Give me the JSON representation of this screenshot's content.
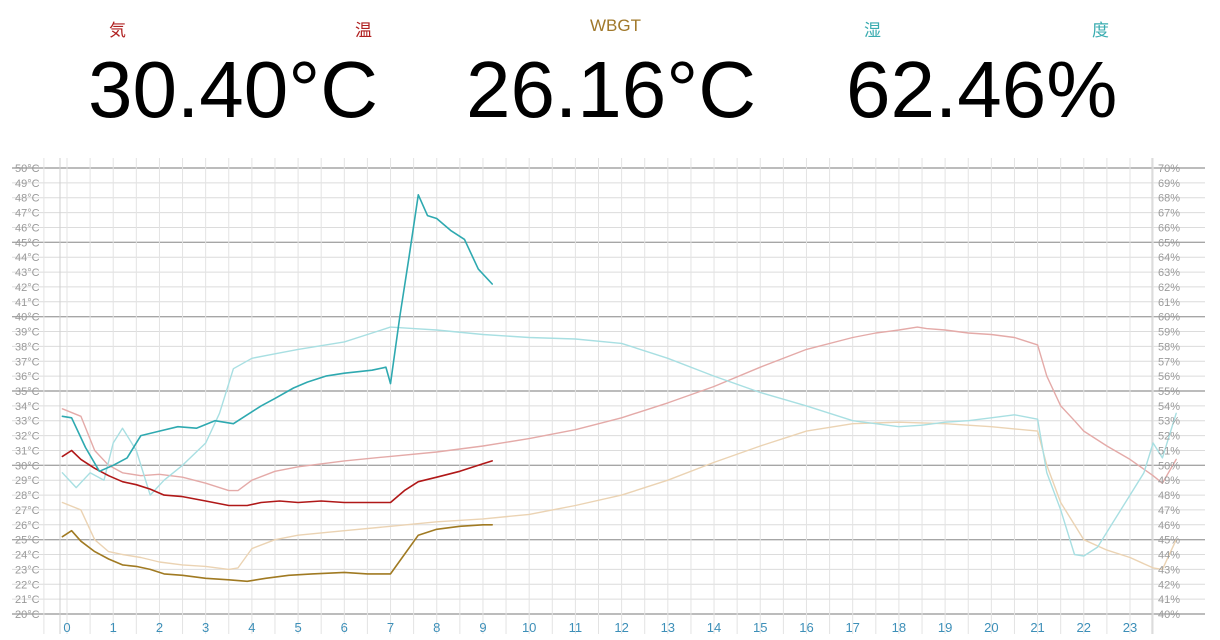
{
  "header": {
    "air_temp_label_1": "気",
    "air_temp_label_2": "温",
    "wbgt_label": "WBGT",
    "humidity_label_1": "湿",
    "humidity_label_2": "度",
    "air_temp_value": "30.40°C",
    "wbgt_value": "26.16°C",
    "humidity_value": "62.46%",
    "colors": {
      "air_temp": "#b02020",
      "wbgt": "#a0782a",
      "humidity": "#3aacb0"
    }
  },
  "chart_data": {
    "type": "line",
    "x_ticks": [
      "0",
      "1",
      "2",
      "3",
      "4",
      "5",
      "6",
      "7",
      "8",
      "9",
      "10",
      "11",
      "12",
      "13",
      "14",
      "15",
      "16",
      "17",
      "18",
      "19",
      "20",
      "21",
      "22",
      "23"
    ],
    "xlim": [
      -0.2,
      24.4
    ],
    "left_axis": {
      "ticks": [
        "20°C",
        "21°C",
        "22°C",
        "23°C",
        "24°C",
        "25°C",
        "26°C",
        "27°C",
        "28°C",
        "29°C",
        "30°C",
        "31°C",
        "32°C",
        "33°C",
        "34°C",
        "35°C",
        "36°C",
        "37°C",
        "38°C",
        "39°C",
        "40°C",
        "41°C",
        "42°C",
        "43°C",
        "44°C",
        "45°C",
        "46°C",
        "47°C",
        "48°C",
        "49°C",
        "50°C"
      ],
      "ylim": [
        20,
        50
      ]
    },
    "right_axis": {
      "ticks": [
        "40%",
        "41%",
        "42%",
        "43%",
        "44%",
        "45%",
        "46%",
        "47%",
        "48%",
        "49%",
        "50%",
        "51%",
        "52%",
        "53%",
        "54%",
        "55%",
        "56%",
        "57%",
        "58%",
        "59%",
        "60%",
        "61%",
        "62%",
        "63%",
        "64%",
        "65%",
        "66%",
        "67%",
        "68%",
        "69%",
        "70%"
      ],
      "ylim": [
        40,
        70
      ]
    },
    "grid": true,
    "series": [
      {
        "key": "air_today",
        "axis": "left",
        "color": "#b01818",
        "width": 1.6,
        "x": [
          -0.1,
          0.1,
          0.3,
          0.6,
          0.9,
          1.2,
          1.5,
          1.8,
          2.1,
          2.5,
          3,
          3.5,
          3.9,
          4.2,
          4.6,
          5,
          5.5,
          6,
          6.5,
          7,
          7.3,
          7.6,
          8,
          8.5,
          9,
          9.2
        ],
        "y": [
          30.6,
          31.0,
          30.4,
          29.8,
          29.3,
          28.9,
          28.7,
          28.4,
          28.0,
          27.9,
          27.6,
          27.3,
          27.3,
          27.5,
          27.6,
          27.5,
          27.6,
          27.5,
          27.5,
          27.5,
          28.3,
          28.9,
          29.2,
          29.6,
          30.1,
          30.3
        ]
      },
      {
        "key": "wbgt_today",
        "axis": "left",
        "color": "#a07a22",
        "width": 1.6,
        "x": [
          -0.1,
          0.1,
          0.3,
          0.6,
          0.9,
          1.2,
          1.5,
          1.8,
          2.1,
          2.5,
          3,
          3.5,
          3.9,
          4.3,
          4.8,
          5.3,
          6,
          6.5,
          7,
          7.3,
          7.6,
          8,
          8.5,
          9,
          9.2
        ],
        "y": [
          25.2,
          25.6,
          24.9,
          24.2,
          23.7,
          23.3,
          23.2,
          23.0,
          22.7,
          22.6,
          22.4,
          22.3,
          22.2,
          22.4,
          22.6,
          22.7,
          22.8,
          22.7,
          22.7,
          24.0,
          25.3,
          25.7,
          25.9,
          26.0,
          26.0
        ]
      },
      {
        "key": "hum_today",
        "axis": "right",
        "color": "#2ea9b0",
        "width": 1.6,
        "x": [
          -0.1,
          0.1,
          0.4,
          0.7,
          1.0,
          1.3,
          1.6,
          2.0,
          2.4,
          2.8,
          3.2,
          3.6,
          3.9,
          4.2,
          4.5,
          4.9,
          5.2,
          5.6,
          6.0,
          6.3,
          6.6,
          6.9,
          7.0,
          7.2,
          7.4,
          7.6,
          7.8,
          8.0,
          8.3,
          8.6,
          8.9,
          9.2
        ],
        "y": [
          53.3,
          53.2,
          51.2,
          49.6,
          50.0,
          50.5,
          52.0,
          52.3,
          52.6,
          52.5,
          53.0,
          52.8,
          53.4,
          54.0,
          54.5,
          55.2,
          55.6,
          56.0,
          56.2,
          56.3,
          56.4,
          56.6,
          55.5,
          60.0,
          64.0,
          68.2,
          66.8,
          66.6,
          65.8,
          65.2,
          63.2,
          62.2
        ]
      },
      {
        "key": "air_yesterday",
        "axis": "left",
        "color": "#e4aaa8",
        "width": 1.4,
        "x": [
          -0.1,
          0.3,
          0.6,
          0.9,
          1.2,
          1.6,
          2.0,
          2.5,
          3.0,
          3.5,
          3.7,
          4.0,
          4.5,
          5.0,
          6.0,
          7.0,
          8.0,
          9.0,
          10.0,
          11.0,
          12.0,
          13.0,
          14.0,
          15.0,
          16.0,
          17.0,
          17.5,
          18.0,
          18.4,
          18.6,
          19.0,
          19.5,
          20.0,
          20.5,
          21.0,
          21.2,
          21.5,
          21.8,
          22.0,
          22.5,
          23.0,
          23.5,
          23.7,
          24.0
        ],
        "y": [
          33.8,
          33.3,
          31.0,
          30.0,
          29.5,
          29.3,
          29.4,
          29.2,
          28.8,
          28.3,
          28.3,
          29.0,
          29.6,
          29.9,
          30.3,
          30.6,
          30.9,
          31.3,
          31.8,
          32.4,
          33.2,
          34.2,
          35.3,
          36.6,
          37.8,
          38.6,
          38.9,
          39.1,
          39.3,
          39.2,
          39.1,
          38.9,
          38.8,
          38.6,
          38.1,
          36.0,
          34.0,
          33.0,
          32.3,
          31.3,
          30.4,
          29.3,
          28.8,
          30.4
        ]
      },
      {
        "key": "wbgt_yesterday",
        "axis": "left",
        "color": "#ebd3b3",
        "width": 1.4,
        "x": [
          -0.1,
          0.3,
          0.6,
          0.9,
          1.2,
          1.6,
          2.0,
          2.5,
          3.0,
          3.5,
          3.7,
          4.0,
          4.5,
          5.0,
          6.0,
          7.0,
          8.0,
          9.0,
          10.0,
          11.0,
          12.0,
          13.0,
          14.0,
          15.0,
          16.0,
          17.0,
          18.0,
          19.0,
          20.0,
          21.0,
          21.2,
          21.5,
          21.8,
          22.0,
          22.5,
          23.0,
          23.5,
          23.7,
          24.0
        ],
        "y": [
          27.5,
          27.0,
          25.0,
          24.2,
          24.0,
          23.8,
          23.5,
          23.3,
          23.2,
          23.0,
          23.1,
          24.4,
          25.0,
          25.3,
          25.6,
          25.9,
          26.2,
          26.4,
          26.7,
          27.3,
          28.0,
          29.0,
          30.2,
          31.3,
          32.3,
          32.8,
          32.9,
          32.8,
          32.6,
          32.3,
          30.0,
          27.5,
          26.0,
          25.0,
          24.3,
          23.8,
          23.1,
          23.0,
          25.0
        ]
      },
      {
        "key": "hum_yesterday",
        "axis": "right",
        "color": "#a8dfe2",
        "width": 1.4,
        "x": [
          -0.1,
          0.2,
          0.5,
          0.8,
          1.0,
          1.2,
          1.5,
          1.8,
          2.1,
          2.5,
          3.0,
          3.3,
          3.6,
          4.0,
          4.5,
          5.0,
          6.0,
          7.0,
          7.5,
          8.0,
          9.0,
          10.0,
          11.0,
          12.0,
          13.0,
          14.0,
          15.0,
          16.0,
          17.0,
          18.0,
          18.5,
          19.0,
          19.5,
          20.0,
          20.5,
          21.0,
          21.2,
          21.5,
          21.8,
          22.0,
          22.3,
          22.6,
          23.0,
          23.3,
          23.5,
          23.7,
          24.0
        ],
        "y": [
          49.5,
          48.5,
          49.5,
          49.0,
          51.5,
          52.5,
          51.0,
          48.0,
          49.0,
          50.0,
          51.5,
          53.5,
          56.5,
          57.2,
          57.5,
          57.8,
          58.3,
          59.3,
          59.2,
          59.1,
          58.8,
          58.6,
          58.5,
          58.2,
          57.2,
          56.0,
          54.9,
          54.0,
          53.0,
          52.6,
          52.7,
          52.9,
          53.0,
          53.2,
          53.4,
          53.1,
          49.5,
          47.0,
          44.0,
          43.9,
          44.5,
          46.0,
          48.0,
          49.5,
          51.5,
          50.5,
          53.5
        ]
      }
    ]
  }
}
